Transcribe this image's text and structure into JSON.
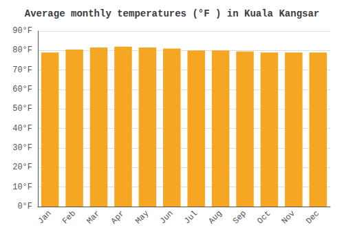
{
  "chart_data": {
    "type": "bar",
    "title": "Average monthly temperatures (°F ) in Kuala Kangsar",
    "categories": [
      "Jan",
      "Feb",
      "Mar",
      "Apr",
      "May",
      "Jun",
      "Jul",
      "Aug",
      "Sep",
      "Oct",
      "Nov",
      "Dec"
    ],
    "values": [
      79,
      80.5,
      81.5,
      82,
      81.5,
      81,
      80,
      80,
      79.5,
      79,
      79,
      79
    ],
    "color": "#F5A623",
    "ylim": [
      0,
      90
    ],
    "yticks": [
      {
        "value": 0,
        "label": "0°F"
      },
      {
        "value": 10,
        "label": "10°F"
      },
      {
        "value": 20,
        "label": "20°F"
      },
      {
        "value": 30,
        "label": "30°F"
      },
      {
        "value": 40,
        "label": "40°F"
      },
      {
        "value": 50,
        "label": "50°F"
      },
      {
        "value": 60,
        "label": "60°F"
      },
      {
        "value": 70,
        "label": "70°F"
      },
      {
        "value": 80,
        "label": "80°F"
      },
      {
        "value": 90,
        "label": "90°F"
      }
    ],
    "grid": true
  }
}
